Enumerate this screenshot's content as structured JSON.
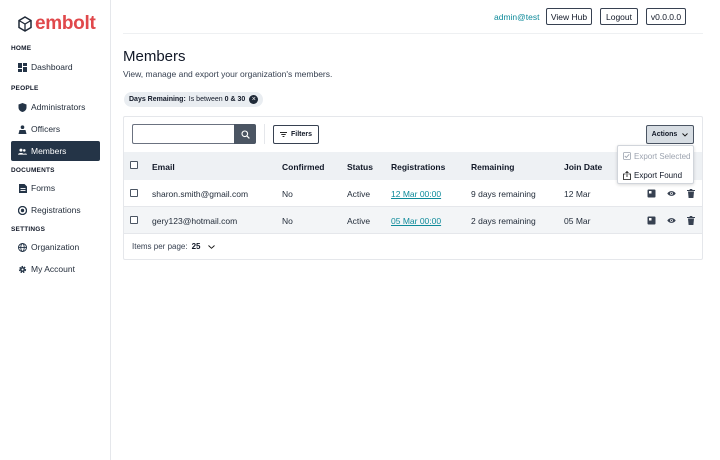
{
  "brand": {
    "name": "embolt",
    "color": "#e0484b"
  },
  "sidebar": {
    "sections": [
      {
        "label": "HOME",
        "items": [
          {
            "label": "Dashboard",
            "icon": "dashboard-icon"
          }
        ]
      },
      {
        "label": "PEOPLE",
        "items": [
          {
            "label": "Administrators",
            "icon": "shield-icon"
          },
          {
            "label": "Officers",
            "icon": "officers-icon"
          },
          {
            "label": "Members",
            "icon": "members-icon",
            "active": true
          }
        ]
      },
      {
        "label": "DOCUMENTS",
        "items": [
          {
            "label": "Forms",
            "icon": "form-icon"
          },
          {
            "label": "Registrations",
            "icon": "registrations-icon"
          }
        ]
      },
      {
        "label": "SETTINGS",
        "items": [
          {
            "label": "Organization",
            "icon": "globe-icon"
          },
          {
            "label": "My Account",
            "icon": "gear-icon"
          }
        ]
      }
    ]
  },
  "topbar": {
    "user": "admin@test",
    "view_hub": "View Hub",
    "logout": "Logout",
    "version": "v0.0.0.0"
  },
  "page": {
    "title": "Members",
    "subtitle": "View, manage and export your organization's members."
  },
  "filter_chip": {
    "key": "Days Remaining:",
    "text": "Is between",
    "value": "0 & 30"
  },
  "toolbar": {
    "search_value": "",
    "filters_label": "Filters",
    "actions_label": "Actions"
  },
  "table": {
    "columns": [
      "Email",
      "Confirmed",
      "Status",
      "Registrations",
      "Remaining",
      "Join Date"
    ],
    "rows": [
      {
        "email": "sharon.smith@gmail.com",
        "confirmed": "No",
        "status": "Active",
        "registrations": "12 Mar 00:00",
        "remaining": "9 days remaining",
        "join_date": "12 Mar"
      },
      {
        "email": "gery123@hotmail.com",
        "confirmed": "No",
        "status": "Active",
        "registrations": "05 Mar 00:00",
        "remaining": "2 days remaining",
        "join_date": "05 Mar"
      }
    ]
  },
  "pagination": {
    "label": "Items per page:",
    "value": "25"
  },
  "actions_menu": {
    "items": [
      {
        "label": "Export Selected",
        "disabled": true
      },
      {
        "label": "Export Found",
        "disabled": false
      }
    ]
  },
  "colors": {
    "accent": "#0e8a9a",
    "sidebar_active": "#243447"
  }
}
